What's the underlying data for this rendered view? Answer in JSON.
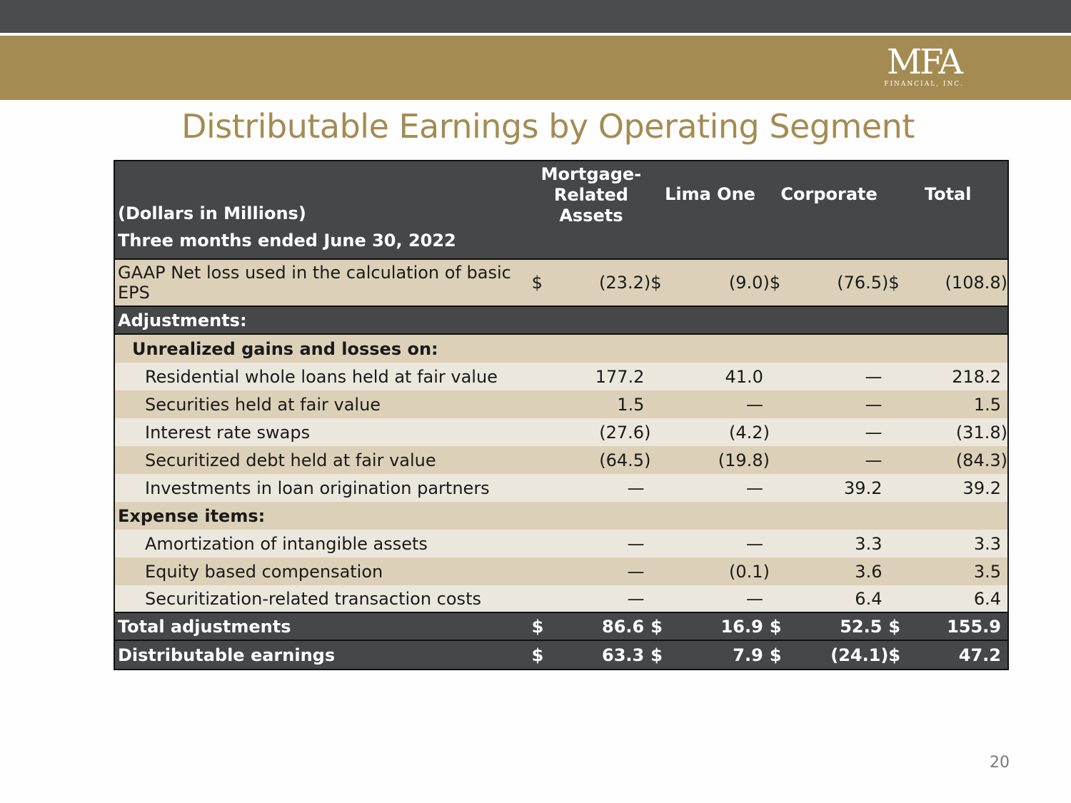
{
  "logo": {
    "main": "MFA",
    "sub": "FINANCIAL, INC."
  },
  "title": "Distributable Earnings by Operating Segment",
  "table": {
    "units": "(Dollars in Millions)",
    "period": "Three months ended June 30, 2022",
    "columns": [
      "Mortgage-\nRelated\nAssets",
      "Lima One",
      "Corporate",
      "Total"
    ],
    "gaap": {
      "label": "GAAP Net loss used in the calculation of basic EPS",
      "values": [
        "(23.2)",
        "(9.0)",
        "(76.5)",
        "(108.8)"
      ],
      "currency": "$"
    },
    "adjustments_label": "Adjustments:",
    "unrealized_label": "Unrealized gains and losses on:",
    "unrealized_rows": [
      {
        "label": "Residential whole loans held at fair value",
        "values": [
          "177.2",
          "41.0",
          "—",
          "218.2"
        ]
      },
      {
        "label": "Securities held at fair value",
        "values": [
          "1.5",
          "—",
          "—",
          "1.5"
        ]
      },
      {
        "label": "Interest rate swaps",
        "values": [
          "(27.6)",
          "(4.2)",
          "—",
          "(31.8)"
        ]
      },
      {
        "label": "Securitized debt held at fair value",
        "values": [
          "(64.5)",
          "(19.8)",
          "—",
          "(84.3)"
        ]
      },
      {
        "label": "Investments in loan origination partners",
        "values": [
          "—",
          "—",
          "39.2",
          "39.2"
        ]
      }
    ],
    "expense_label": "Expense items:",
    "expense_rows": [
      {
        "label": "Amortization of intangible assets",
        "values": [
          "—",
          "—",
          "3.3",
          "3.3"
        ]
      },
      {
        "label": "Equity based compensation",
        "values": [
          "—",
          "(0.1)",
          "3.6",
          "3.5"
        ]
      },
      {
        "label": "Securitization-related transaction costs",
        "values": [
          "—",
          "—",
          "6.4",
          "6.4"
        ]
      }
    ],
    "total_adjustments": {
      "label": "Total adjustments",
      "values": [
        "86.6",
        "16.9",
        "52.5",
        "155.9"
      ],
      "currency": "$"
    },
    "distributable": {
      "label": "Distributable earnings",
      "values": [
        "63.3",
        "7.9",
        "(24.1)",
        "47.2"
      ],
      "currency": "$"
    }
  },
  "page_number": "20",
  "colors": {
    "gold": "#a48b52",
    "dark": "#464749",
    "tan": "#dcd1b8",
    "light": "#ece7dc"
  }
}
